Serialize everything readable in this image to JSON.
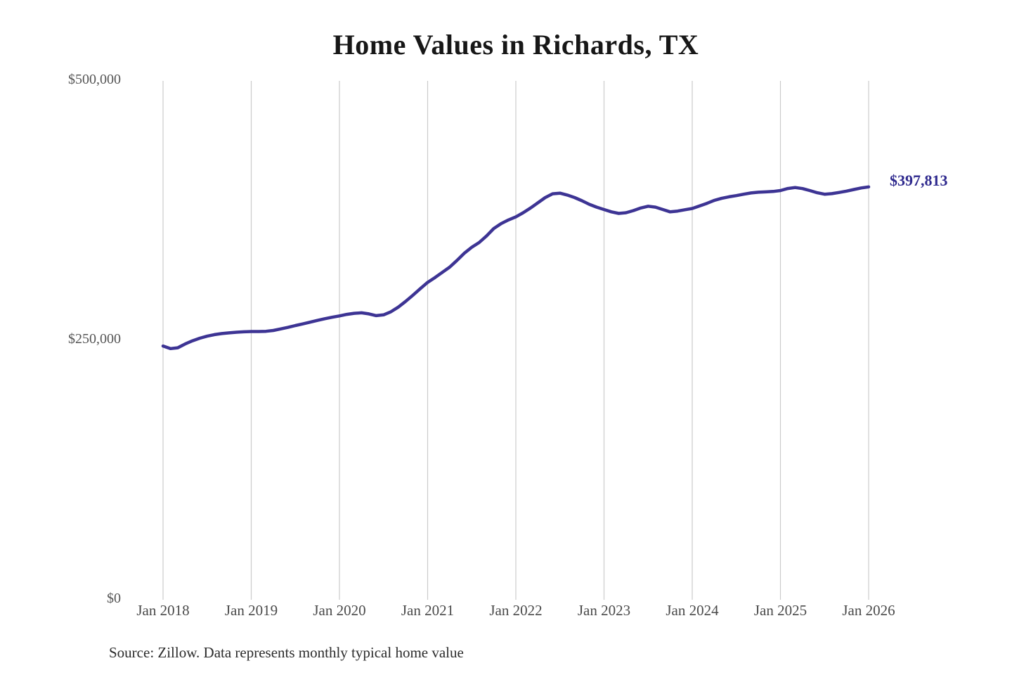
{
  "page": {
    "title": "Home Values in Richards, TX",
    "end_value_label": "$397,813",
    "source_note": "Source: Zillow. Data represents monthly typical home value"
  },
  "colors": {
    "background": "#ffffff",
    "line": "#3d3494",
    "end_label": "#2f2a8e",
    "gridline": "#cbcbcb",
    "title_text": "#171717",
    "x_tick_text": "#4a4a4a",
    "y_tick_text": "#555555",
    "source_text": "#2b2b2b"
  },
  "chart_data": {
    "type": "line",
    "title": "Home Values in Richards, TX",
    "xlabel": "",
    "ylabel": "",
    "ylim": [
      0,
      500000
    ],
    "grid": "vertical-only",
    "legend": "none",
    "y_ticks": [
      {
        "value": 0,
        "label": "$0"
      },
      {
        "value": 250000,
        "label": "$250,000"
      },
      {
        "value": 500000,
        "label": "$500,000"
      }
    ],
    "x_ticks": [
      "Jan 2018",
      "Jan 2019",
      "Jan 2020",
      "Jan 2021",
      "Jan 2022",
      "Jan 2023",
      "Jan 2024",
      "Jan 2025",
      "Jan 2026"
    ],
    "months_per_tick": 12,
    "annotation": {
      "text": "$397,813",
      "position": "end-of-line"
    },
    "source": "Source: Zillow. Data represents monthly typical home value",
    "series": [
      {
        "name": "Monthly typical home value",
        "unit": "USD",
        "interval": "monthly",
        "start_month": "2018-01",
        "end_month": "2026-01",
        "values": [
          244500,
          242000,
          242800,
          246500,
          249500,
          252000,
          254000,
          255500,
          256500,
          257200,
          257800,
          258200,
          258500,
          258500,
          258700,
          259500,
          261000,
          262500,
          264200,
          265800,
          267500,
          269200,
          270800,
          272200,
          273500,
          275000,
          276000,
          276500,
          275500,
          273800,
          274500,
          277500,
          282000,
          287500,
          293500,
          299700,
          305800,
          310500,
          315500,
          320500,
          327000,
          334000,
          339700,
          344200,
          350500,
          357700,
          362500,
          366000,
          369000,
          373000,
          377500,
          382500,
          387500,
          391200,
          391800,
          390000,
          387500,
          384500,
          381000,
          378300,
          376000,
          373800,
          372300,
          373000,
          375000,
          377500,
          379200,
          378300,
          376000,
          373800,
          374500,
          375800,
          377000,
          379500,
          382000,
          384800,
          386800,
          388300,
          389400,
          390800,
          392000,
          392700,
          393000,
          393400,
          394300,
          396300,
          397200,
          396200,
          394300,
          392200,
          390800,
          391300,
          392500,
          393800,
          395300,
          396800,
          397813
        ]
      }
    ]
  }
}
